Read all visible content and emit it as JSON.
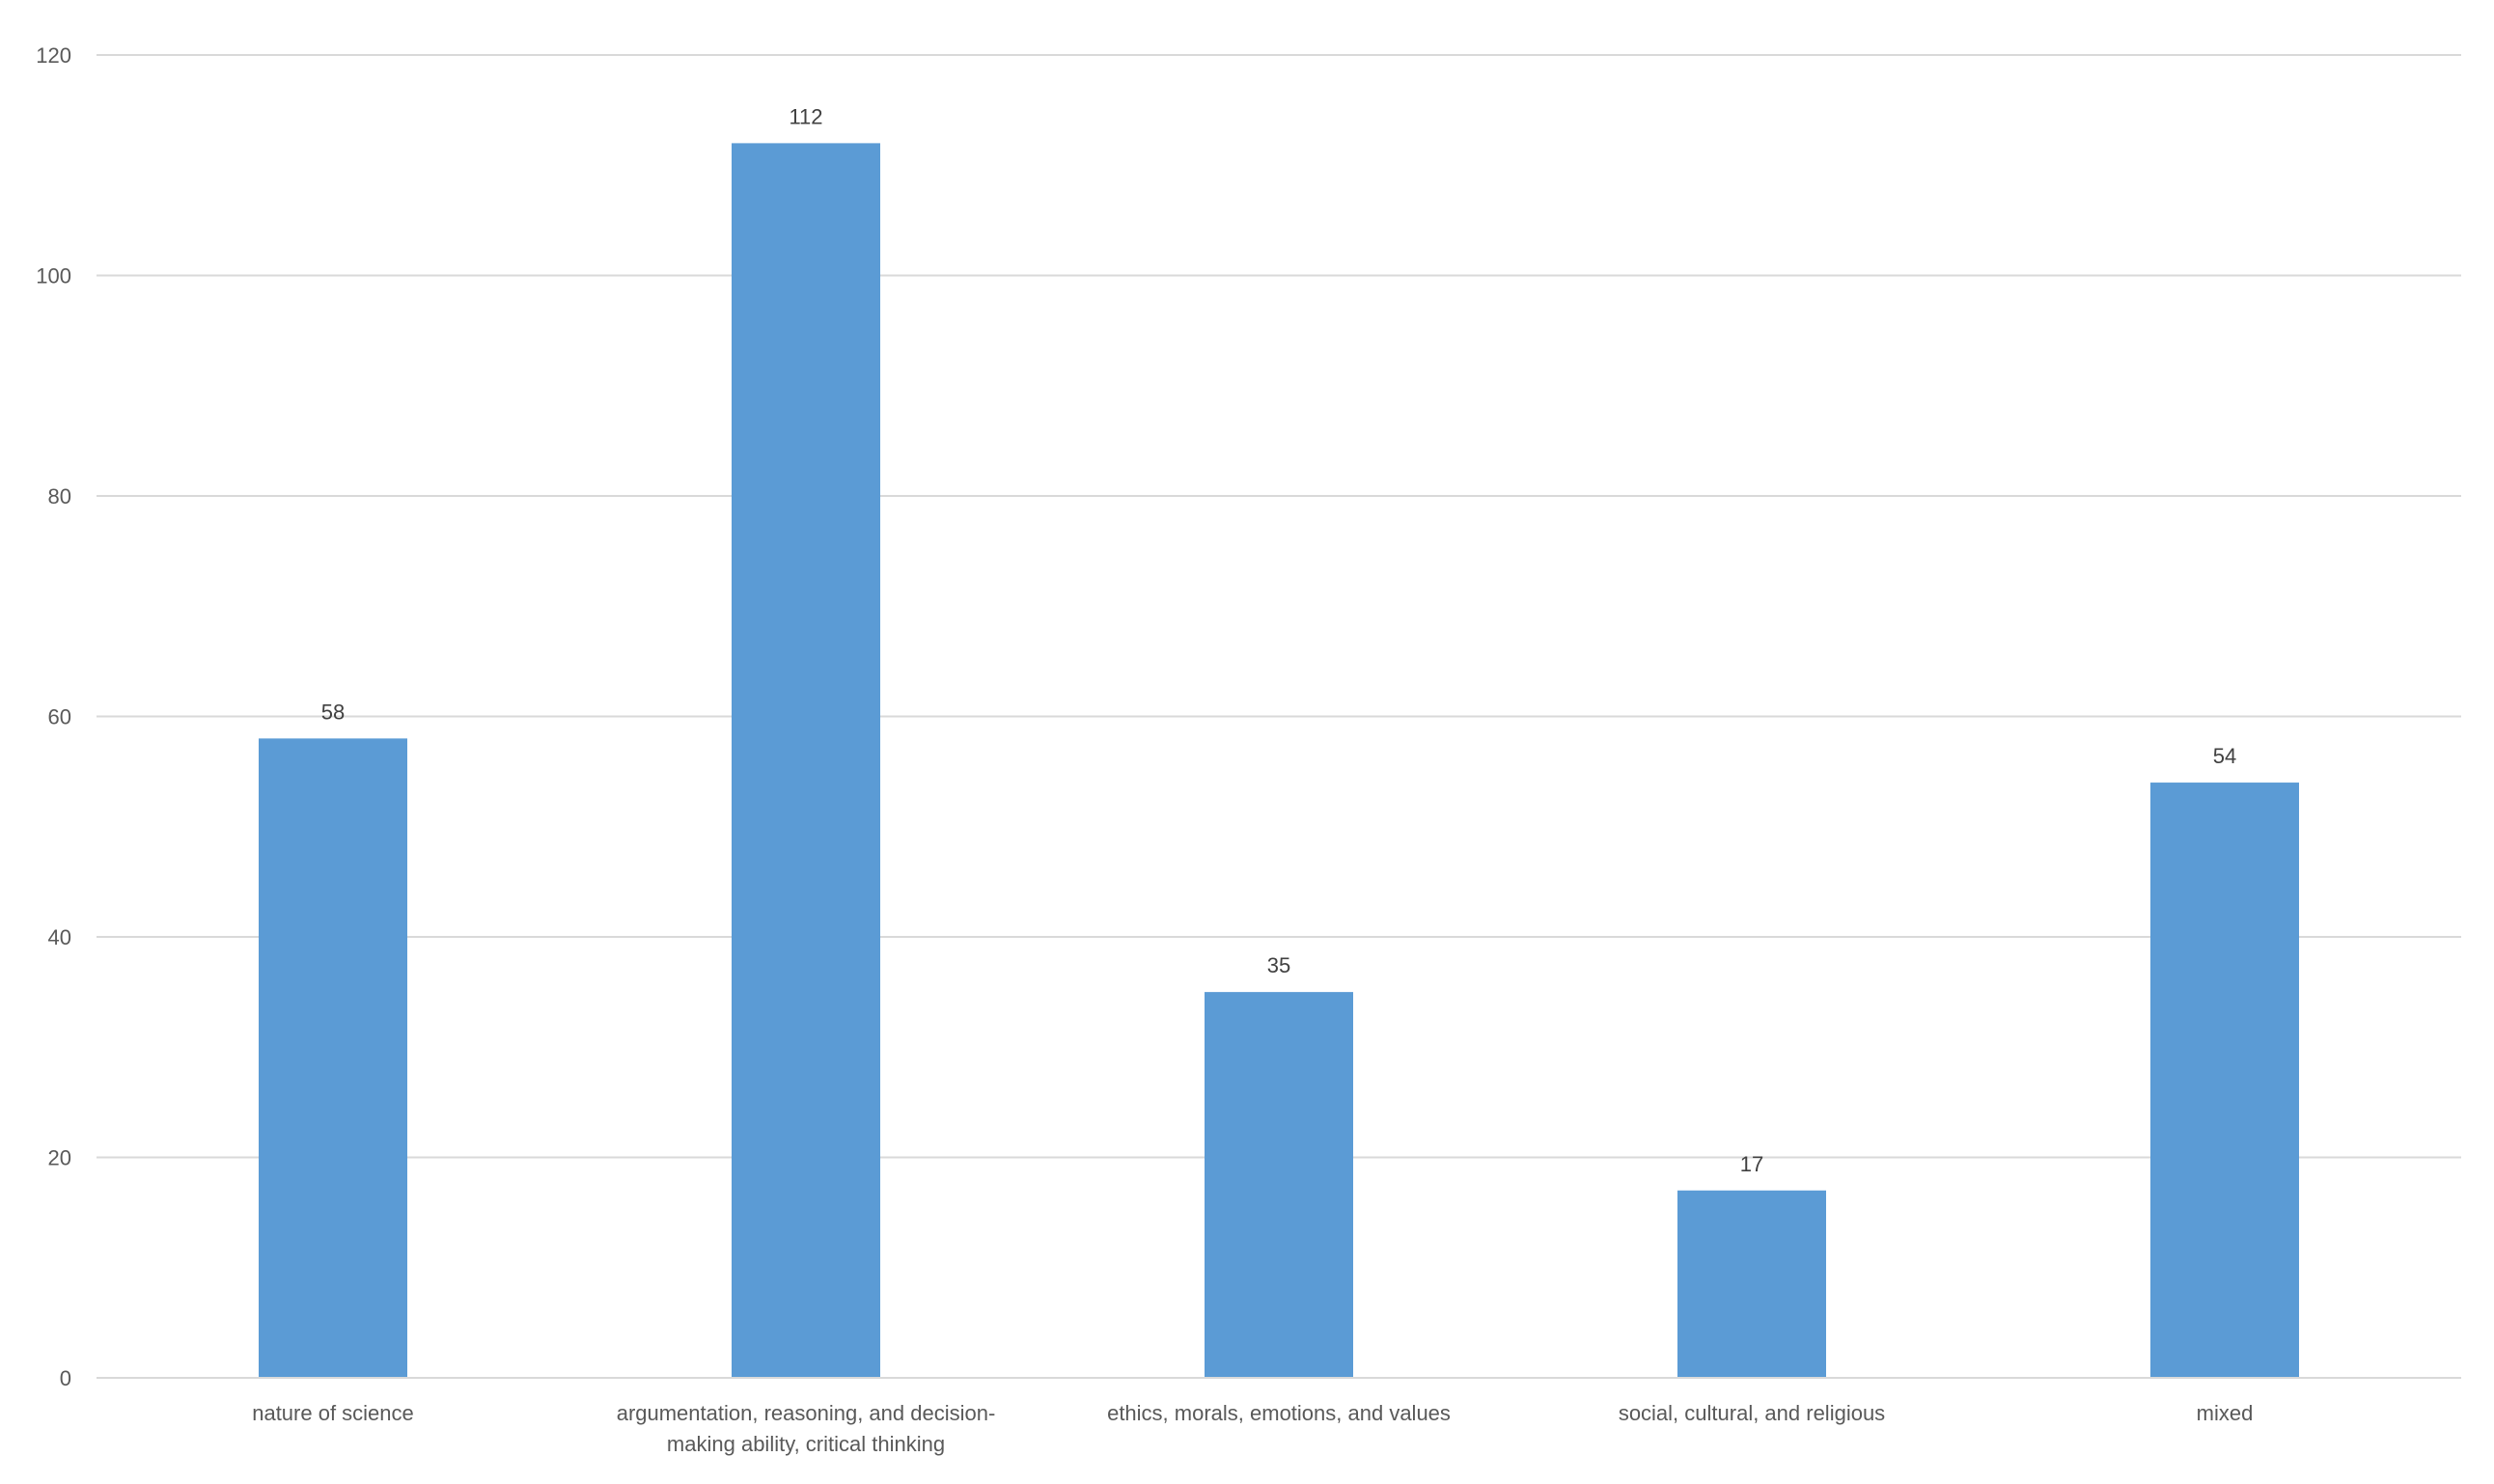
{
  "chart_data": {
    "type": "bar",
    "title": "",
    "xlabel": "",
    "ylabel": "",
    "categories": [
      [
        "nature of science"
      ],
      [
        "argumentation, reasoning, and decision-",
        "making ability, critical thinking"
      ],
      [
        "ethics, morals, emotions, and values"
      ],
      [
        "social, cultural, and religious"
      ],
      [
        "mixed"
      ]
    ],
    "values": [
      58,
      112,
      35,
      17,
      54
    ],
    "data_labels": [
      "58",
      "112",
      "35",
      "17",
      "54"
    ],
    "ylim": [
      0,
      120
    ],
    "yticks": [
      0,
      20,
      40,
      60,
      80,
      100,
      120
    ],
    "ytick_labels": [
      "0",
      "20",
      "40",
      "60",
      "80",
      "100",
      "120"
    ],
    "grid": true,
    "legend": "none",
    "colors": {
      "bar": "#5b9bd5",
      "grid": "#d9d9d9",
      "axis": "#d9d9d9",
      "text": "#595959"
    }
  }
}
